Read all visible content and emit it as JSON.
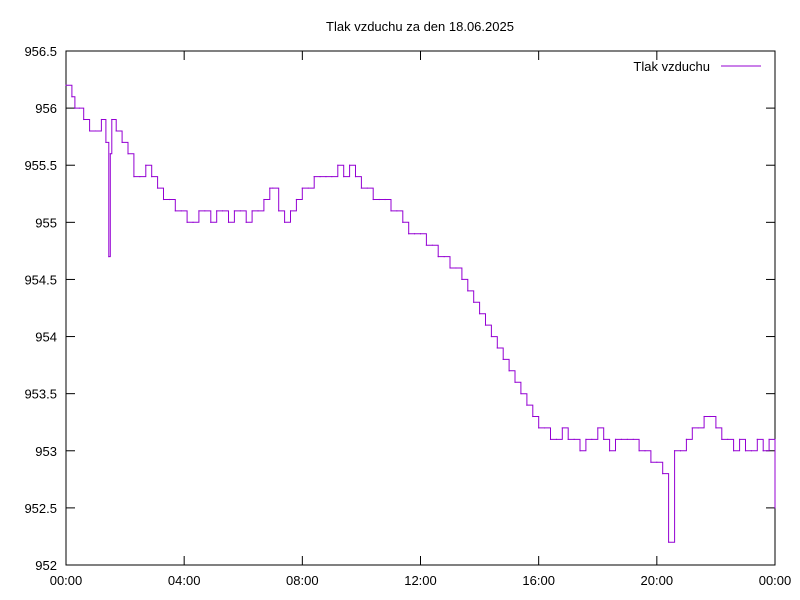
{
  "chart_data": {
    "type": "line",
    "title": "Tlak vzduchu za den 18.06.2025",
    "xlabel": "",
    "ylabel": "",
    "legend_position": "top-right",
    "grid": false,
    "color": "#9400d3",
    "ylim": [
      952,
      956.5
    ],
    "xlim_hours": [
      0,
      24
    ],
    "x_ticks": [
      "00:00",
      "04:00",
      "08:00",
      "12:00",
      "16:00",
      "20:00",
      "00:00"
    ],
    "y_ticks": [
      "952",
      "952.5",
      "953",
      "953.5",
      "954",
      "954.5",
      "955",
      "955.5",
      "956",
      "956.5"
    ],
    "series": [
      {
        "name": "Tlak vzduchu",
        "x_hours": [
          0.0,
          0.2,
          0.3,
          0.45,
          0.6,
          0.8,
          1.0,
          1.2,
          1.35,
          1.45,
          1.5,
          1.55,
          1.7,
          1.9,
          2.1,
          2.3,
          2.5,
          2.7,
          2.9,
          3.1,
          3.3,
          3.5,
          3.7,
          3.9,
          4.1,
          4.3,
          4.5,
          4.7,
          4.9,
          5.1,
          5.3,
          5.5,
          5.7,
          5.9,
          6.1,
          6.3,
          6.5,
          6.7,
          6.9,
          7.0,
          7.2,
          7.4,
          7.6,
          7.8,
          8.0,
          8.2,
          8.4,
          8.6,
          8.8,
          9.0,
          9.2,
          9.4,
          9.6,
          9.8,
          10.0,
          10.2,
          10.4,
          10.6,
          10.8,
          11.0,
          11.2,
          11.4,
          11.6,
          11.8,
          12.0,
          12.2,
          12.4,
          12.6,
          12.8,
          13.0,
          13.2,
          13.4,
          13.6,
          13.8,
          14.0,
          14.2,
          14.4,
          14.6,
          14.8,
          15.0,
          15.2,
          15.4,
          15.6,
          15.8,
          16.0,
          16.2,
          16.4,
          16.6,
          16.8,
          17.0,
          17.2,
          17.4,
          17.6,
          17.8,
          18.0,
          18.2,
          18.4,
          18.6,
          18.8,
          19.0,
          19.2,
          19.4,
          19.6,
          19.8,
          20.0,
          20.2,
          20.4,
          20.6,
          20.8,
          21.0,
          21.2,
          21.4,
          21.6,
          21.8,
          22.0,
          22.2,
          22.4,
          22.6,
          22.8,
          23.0,
          23.2,
          23.4,
          23.6,
          23.8,
          24.0
        ],
        "values": [
          956.2,
          956.1,
          956.0,
          956.0,
          955.9,
          955.8,
          955.8,
          955.9,
          955.7,
          954.7,
          955.6,
          955.9,
          955.8,
          955.7,
          955.6,
          955.4,
          955.4,
          955.5,
          955.4,
          955.3,
          955.2,
          955.2,
          955.1,
          955.1,
          955.0,
          955.0,
          955.1,
          955.1,
          955.0,
          955.1,
          955.1,
          955.0,
          955.1,
          955.1,
          955.0,
          955.1,
          955.1,
          955.2,
          955.3,
          955.3,
          955.1,
          955.0,
          955.1,
          955.2,
          955.3,
          955.3,
          955.4,
          955.4,
          955.4,
          955.4,
          955.5,
          955.4,
          955.5,
          955.4,
          955.3,
          955.3,
          955.2,
          955.2,
          955.2,
          955.1,
          955.1,
          955.0,
          954.9,
          954.9,
          954.9,
          954.8,
          954.8,
          954.7,
          954.7,
          954.6,
          954.6,
          954.5,
          954.4,
          954.3,
          954.2,
          954.1,
          954.0,
          953.9,
          953.8,
          953.7,
          953.6,
          953.5,
          953.4,
          953.3,
          953.2,
          953.2,
          953.1,
          953.1,
          953.2,
          953.1,
          953.1,
          953.0,
          953.1,
          953.1,
          953.2,
          953.1,
          953.0,
          953.1,
          953.1,
          953.1,
          953.1,
          953.0,
          953.0,
          952.9,
          952.9,
          952.8,
          952.2,
          953.0,
          953.0,
          953.1,
          953.2,
          953.2,
          953.3,
          953.3,
          953.2,
          953.1,
          953.1,
          953.0,
          953.1,
          953.0,
          953.0,
          953.1,
          953.0,
          953.1,
          952.5
        ]
      }
    ]
  }
}
